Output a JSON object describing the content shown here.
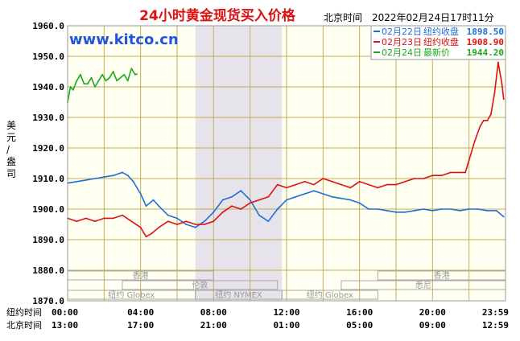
{
  "chart_data": {
    "type": "line",
    "title": "24小时黄金现货买入价格",
    "timestamp_label": "北京时间　2022年02月24日17时11分",
    "watermark": "www.kitco.cn",
    "ylabel": "美元/盎司",
    "ylim": [
      1870,
      1960
    ],
    "yticks": [
      "1960.0",
      "1950.0",
      "1940.0",
      "1930.0",
      "1920.0",
      "1910.0",
      "1900.0",
      "1890.0",
      "1880.0",
      "1870.0"
    ],
    "xaxis_rows": [
      {
        "label": "纽约时间",
        "ticks": [
          "00:00",
          "04:00",
          "08:00",
          "12:00",
          "16:00",
          "20:00",
          "23:59"
        ]
      },
      {
        "label": "北京时间",
        "ticks": [
          "13:00",
          "17:00",
          "21:00",
          "01:00",
          "05:00",
          "09:00",
          "12:59"
        ]
      }
    ],
    "grid": true,
    "legend_position": "top-right",
    "legend": [
      {
        "date": "02月22日",
        "desc": "纽约收盘",
        "value": "1898.50",
        "color": "#1e6fd9"
      },
      {
        "date": "02月23日",
        "desc": "纽约收盘",
        "value": "1908.90",
        "color": "#dd1111"
      },
      {
        "date": "02月24日",
        "desc": "最新价",
        "value": "1944.20",
        "color": "#1ea81e"
      }
    ],
    "series": [
      {
        "name": "02月22日",
        "color": "#1e6fd9",
        "x": [
          0,
          0.5,
          1,
          1.5,
          2,
          2.5,
          3,
          3.3,
          3.6,
          4,
          4.3,
          4.7,
          5,
          5.5,
          6,
          6.5,
          7,
          7.5,
          8,
          8.5,
          9,
          9.5,
          10,
          10.5,
          11,
          11.5,
          12,
          12.5,
          13,
          13.5,
          14,
          14.5,
          15,
          15.5,
          16,
          16.5,
          17,
          17.5,
          18,
          18.5,
          19,
          19.5,
          20,
          20.5,
          21,
          21.5,
          22,
          22.5,
          23,
          23.5,
          23.9
        ],
        "y": [
          1908.5,
          1909,
          1909.5,
          1910,
          1910.5,
          1911,
          1912,
          1911,
          1909,
          1905,
          1901,
          1903,
          1901,
          1898,
          1897,
          1895,
          1894,
          1896,
          1899,
          1903,
          1904,
          1906,
          1903,
          1898,
          1896,
          1900,
          1903,
          1904,
          1905,
          1906,
          1905,
          1904,
          1903.5,
          1903,
          1902,
          1900,
          1900,
          1899.5,
          1899,
          1899,
          1899.5,
          1900,
          1899.5,
          1900,
          1900,
          1899.5,
          1900,
          1900,
          1899.5,
          1899.5,
          1897.5
        ]
      },
      {
        "name": "02月23日",
        "color": "#dd1111",
        "x": [
          0,
          0.5,
          1,
          1.5,
          2,
          2.5,
          3,
          3.5,
          4,
          4.3,
          4.6,
          5,
          5.5,
          6,
          6.5,
          7,
          7.5,
          8,
          8.5,
          9,
          9.5,
          10,
          10.5,
          11,
          11.5,
          12,
          12.5,
          13,
          13.5,
          14,
          14.5,
          15,
          15.5,
          16,
          16.5,
          17,
          17.5,
          18,
          18.5,
          19,
          19.5,
          20,
          20.5,
          21,
          21.5,
          21.8,
          22,
          22.3,
          22.6,
          22.8,
          23,
          23.2,
          23.4,
          23.6,
          23.8,
          23.9
        ],
        "y": [
          1897,
          1896,
          1897,
          1896,
          1897,
          1897,
          1898,
          1896,
          1894,
          1891,
          1892,
          1894,
          1896,
          1895,
          1896,
          1895,
          1895,
          1896,
          1899,
          1901,
          1900,
          1902,
          1903,
          1904,
          1908,
          1907,
          1908,
          1909,
          1908,
          1910,
          1909,
          1908,
          1907,
          1909,
          1908,
          1907,
          1908,
          1908,
          1909,
          1910,
          1910,
          1911,
          1911,
          1912,
          1912,
          1912,
          1916,
          1922,
          1927,
          1929,
          1929,
          1931,
          1938,
          1948,
          1941,
          1936
        ]
      },
      {
        "name": "02月24日",
        "color": "#1ea81e",
        "x": [
          0,
          0.15,
          0.3,
          0.5,
          0.7,
          0.9,
          1.1,
          1.3,
          1.5,
          1.7,
          1.9,
          2.1,
          2.3,
          2.5,
          2.7,
          2.9,
          3.1,
          3.3,
          3.5,
          3.7,
          3.8
        ],
        "y": [
          1935,
          1940,
          1939,
          1942,
          1944,
          1941,
          1941,
          1943,
          1940,
          1942,
          1944,
          1942,
          1943,
          1945,
          1942,
          1943,
          1944,
          1942,
          1946,
          1944,
          1944.2
        ]
      }
    ],
    "shaded_band": {
      "from": 7,
      "to": 11.75
    },
    "sessions": [
      {
        "name": "香港",
        "from": 0,
        "to": 8
      },
      {
        "name": "伦敦",
        "from": 3,
        "to": 11.5
      },
      {
        "name": "纽约 Globex",
        "from": 0,
        "to": 7
      },
      {
        "name": "纽约 NYMEX",
        "from": 7,
        "to": 11.75
      },
      {
        "name": "纽约 Globex",
        "from": 11.75,
        "to": 17
      },
      {
        "name": "香港",
        "from": 17,
        "to": 24
      },
      {
        "name": "悉尼",
        "from": 15,
        "to": 24
      }
    ]
  }
}
